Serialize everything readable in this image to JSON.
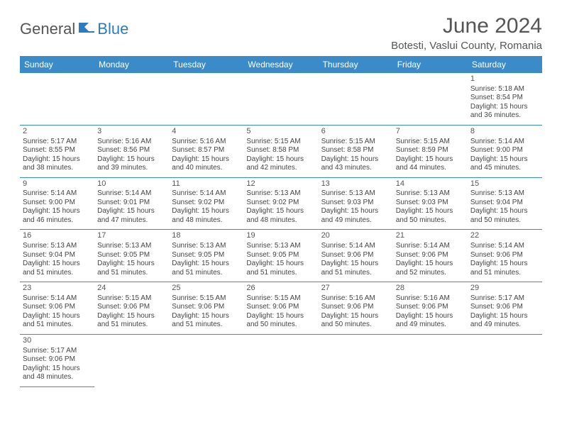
{
  "logo": {
    "general": "General",
    "blue": "Blue"
  },
  "title": "June 2024",
  "location": "Botesti, Vaslui County, Romania",
  "weekdays": [
    "Sunday",
    "Monday",
    "Tuesday",
    "Wednesday",
    "Thursday",
    "Friday",
    "Saturday"
  ],
  "colors": {
    "header_bg": "#3b8bc8",
    "header_text": "#ffffff",
    "border": "#3b8bc8",
    "title_text": "#555555",
    "body_text": "#444444",
    "logo_blue": "#2e7cc0"
  },
  "layout": {
    "first_weekday_index": 6,
    "days_in_month": 30
  },
  "days": [
    {
      "n": 1,
      "sunrise": "5:18 AM",
      "sunset": "8:54 PM",
      "daylight": "15 hours and 36 minutes."
    },
    {
      "n": 2,
      "sunrise": "5:17 AM",
      "sunset": "8:55 PM",
      "daylight": "15 hours and 38 minutes."
    },
    {
      "n": 3,
      "sunrise": "5:16 AM",
      "sunset": "8:56 PM",
      "daylight": "15 hours and 39 minutes."
    },
    {
      "n": 4,
      "sunrise": "5:16 AM",
      "sunset": "8:57 PM",
      "daylight": "15 hours and 40 minutes."
    },
    {
      "n": 5,
      "sunrise": "5:15 AM",
      "sunset": "8:58 PM",
      "daylight": "15 hours and 42 minutes."
    },
    {
      "n": 6,
      "sunrise": "5:15 AM",
      "sunset": "8:58 PM",
      "daylight": "15 hours and 43 minutes."
    },
    {
      "n": 7,
      "sunrise": "5:15 AM",
      "sunset": "8:59 PM",
      "daylight": "15 hours and 44 minutes."
    },
    {
      "n": 8,
      "sunrise": "5:14 AM",
      "sunset": "9:00 PM",
      "daylight": "15 hours and 45 minutes."
    },
    {
      "n": 9,
      "sunrise": "5:14 AM",
      "sunset": "9:00 PM",
      "daylight": "15 hours and 46 minutes."
    },
    {
      "n": 10,
      "sunrise": "5:14 AM",
      "sunset": "9:01 PM",
      "daylight": "15 hours and 47 minutes."
    },
    {
      "n": 11,
      "sunrise": "5:14 AM",
      "sunset": "9:02 PM",
      "daylight": "15 hours and 48 minutes."
    },
    {
      "n": 12,
      "sunrise": "5:13 AM",
      "sunset": "9:02 PM",
      "daylight": "15 hours and 48 minutes."
    },
    {
      "n": 13,
      "sunrise": "5:13 AM",
      "sunset": "9:03 PM",
      "daylight": "15 hours and 49 minutes."
    },
    {
      "n": 14,
      "sunrise": "5:13 AM",
      "sunset": "9:03 PM",
      "daylight": "15 hours and 50 minutes."
    },
    {
      "n": 15,
      "sunrise": "5:13 AM",
      "sunset": "9:04 PM",
      "daylight": "15 hours and 50 minutes."
    },
    {
      "n": 16,
      "sunrise": "5:13 AM",
      "sunset": "9:04 PM",
      "daylight": "15 hours and 51 minutes."
    },
    {
      "n": 17,
      "sunrise": "5:13 AM",
      "sunset": "9:05 PM",
      "daylight": "15 hours and 51 minutes."
    },
    {
      "n": 18,
      "sunrise": "5:13 AM",
      "sunset": "9:05 PM",
      "daylight": "15 hours and 51 minutes."
    },
    {
      "n": 19,
      "sunrise": "5:13 AM",
      "sunset": "9:05 PM",
      "daylight": "15 hours and 51 minutes."
    },
    {
      "n": 20,
      "sunrise": "5:14 AM",
      "sunset": "9:06 PM",
      "daylight": "15 hours and 51 minutes."
    },
    {
      "n": 21,
      "sunrise": "5:14 AM",
      "sunset": "9:06 PM",
      "daylight": "15 hours and 52 minutes."
    },
    {
      "n": 22,
      "sunrise": "5:14 AM",
      "sunset": "9:06 PM",
      "daylight": "15 hours and 51 minutes."
    },
    {
      "n": 23,
      "sunrise": "5:14 AM",
      "sunset": "9:06 PM",
      "daylight": "15 hours and 51 minutes."
    },
    {
      "n": 24,
      "sunrise": "5:15 AM",
      "sunset": "9:06 PM",
      "daylight": "15 hours and 51 minutes."
    },
    {
      "n": 25,
      "sunrise": "5:15 AM",
      "sunset": "9:06 PM",
      "daylight": "15 hours and 51 minutes."
    },
    {
      "n": 26,
      "sunrise": "5:15 AM",
      "sunset": "9:06 PM",
      "daylight": "15 hours and 50 minutes."
    },
    {
      "n": 27,
      "sunrise": "5:16 AM",
      "sunset": "9:06 PM",
      "daylight": "15 hours and 50 minutes."
    },
    {
      "n": 28,
      "sunrise": "5:16 AM",
      "sunset": "9:06 PM",
      "daylight": "15 hours and 49 minutes."
    },
    {
      "n": 29,
      "sunrise": "5:17 AM",
      "sunset": "9:06 PM",
      "daylight": "15 hours and 49 minutes."
    },
    {
      "n": 30,
      "sunrise": "5:17 AM",
      "sunset": "9:06 PM",
      "daylight": "15 hours and 48 minutes."
    }
  ],
  "labels": {
    "sunrise": "Sunrise:",
    "sunset": "Sunset:",
    "daylight": "Daylight:"
  }
}
